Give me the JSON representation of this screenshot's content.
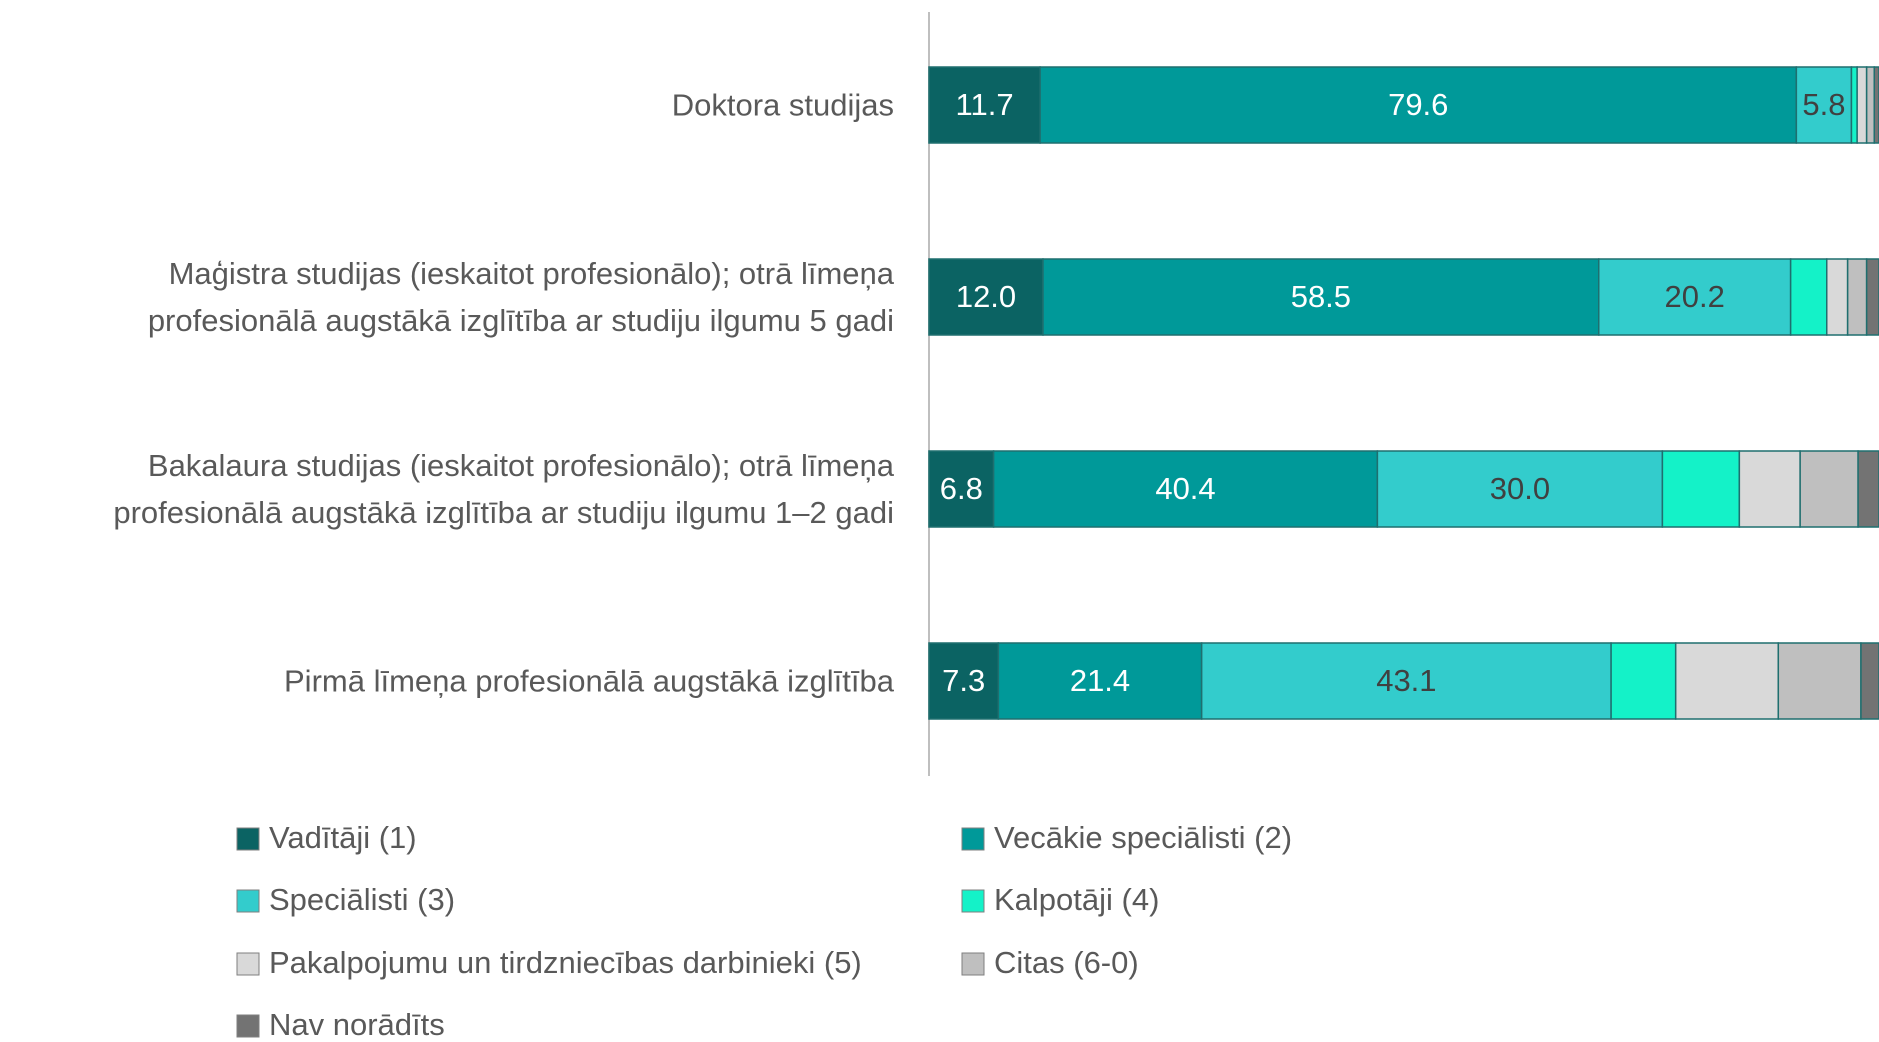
{
  "chart_data": {
    "type": "stacked_barh",
    "categories": [
      "Doktora studijas",
      "Maģistra studijas (ieskaitot profesionālo); otrā līmeņa\nprofesionālā augstākā izglītība ar studiju ilgumu 5 gadi",
      "Bakalaura studijas (ieskaitot profesionālo); otrā līmeņa\nprofesionālā augstākā izglītība ar studiju ilgumu 1–2 gadi",
      "Pirmā līmeņa profesionālā augstākā izglītība"
    ],
    "xlim": [
      0,
      100
    ],
    "series": [
      {
        "name": "Vadītāji (1)",
        "color": "#0b6363",
        "values": [
          11.7,
          12.0,
          6.8,
          7.3
        ],
        "value_labels": [
          "11.7",
          "12.0",
          "6.8",
          "7.3"
        ]
      },
      {
        "name": "Vecākie speciālisti (2)",
        "color": "#009999",
        "values": [
          79.6,
          58.5,
          40.4,
          21.4
        ],
        "value_labels": [
          "79.6",
          "58.5",
          "40.4",
          "21.4"
        ]
      },
      {
        "name": "Speciālisti (3)",
        "color": "#33cccc",
        "values": [
          5.8,
          20.2,
          30.0,
          43.1
        ],
        "value_labels": [
          "5.8",
          "20.2",
          "30.0",
          "43.1"
        ]
      },
      {
        "name": "Kalpotāji (4)",
        "color": "#14f2c8",
        "values": [
          0.6,
          3.8,
          8.1,
          6.8
        ]
      },
      {
        "name": "Pakalpojumu un tirdzniecības darbinieki (5)",
        "color": "#d9d9d9",
        "values": [
          1.0,
          2.2,
          6.4,
          10.8
        ]
      },
      {
        "name": "Citas (6-0)",
        "color": "#bfbfbf",
        "values": [
          0.8,
          2.0,
          6.1,
          8.7
        ]
      },
      {
        "name": "Nav norādīts",
        "color": "#737373",
        "values": [
          0.5,
          1.3,
          2.2,
          1.9
        ]
      }
    ]
  }
}
